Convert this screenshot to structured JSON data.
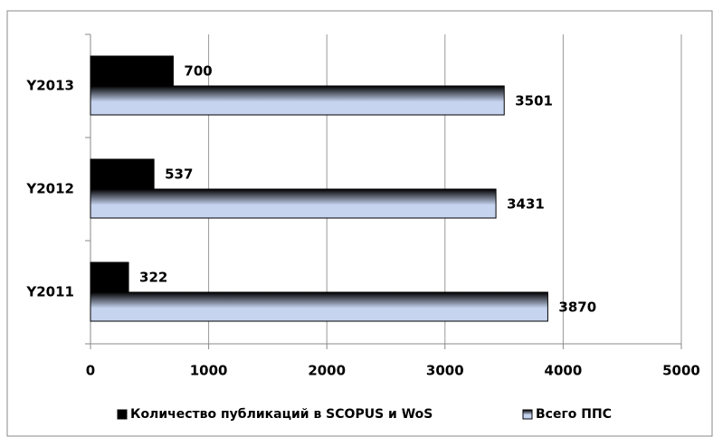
{
  "chart_data": {
    "type": "hbar",
    "categories": [
      "Y2011",
      "Y2012",
      "Y2013"
    ],
    "series": [
      {
        "name": "Количество публикаций в SCOPUS и WoS",
        "color": "#000000",
        "values": [
          322,
          537,
          700
        ]
      },
      {
        "name": "Всего ППС",
        "color": "#c6d4f0",
        "values": [
          3870,
          3431,
          3501
        ]
      }
    ],
    "xlim": [
      0,
      5000
    ],
    "xticks": [
      0,
      1000,
      2000,
      3000,
      4000,
      5000
    ],
    "grid": true,
    "legend": "bottom"
  }
}
